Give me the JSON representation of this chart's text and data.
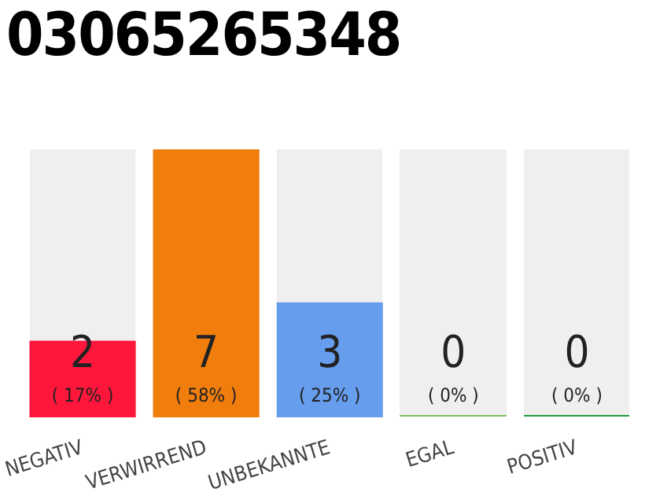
{
  "chart_data": {
    "type": "bar",
    "title": "03065265348",
    "categories": [
      "NEGATIV",
      "VERWIRREND",
      "UNBEKANNTE",
      "EGAL",
      "POSITIV"
    ],
    "values": [
      2,
      7,
      3,
      0,
      0
    ],
    "colors": [
      "#fe173b",
      "#f07d0c",
      "#669ded",
      "#80c060",
      "#20a040"
    ],
    "value_labels": [
      "2\n( 17% )",
      "7\n( 58% )",
      "3\n( 25% )",
      "0\n( 0% )",
      "0\n( 0% )"
    ],
    "ylim": [
      0,
      7
    ],
    "tick_labels": "x",
    "grid": false,
    "legend": false
  }
}
